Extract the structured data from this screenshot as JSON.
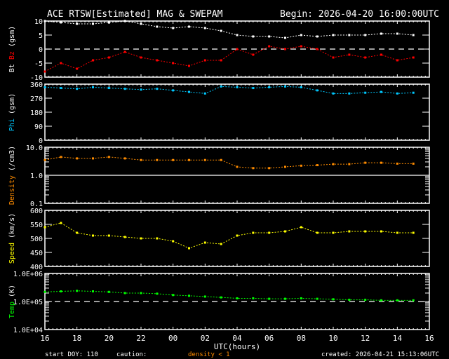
{
  "header": {
    "title": "ACE RTSW[Estimated] MAG & SWEPAM",
    "begin": "Begin: 2026-04-20 16:00:00UTC"
  },
  "footer": {
    "start_doy": "start DOY: 110",
    "caution_label": "caution:",
    "caution_value": "density < 1",
    "caution_color": "#ff8c00",
    "created": "created: 2026-04-21 15:13:06UTC"
  },
  "chart_data": {
    "type": "scatter",
    "xlabel": "UTC(hours)",
    "x_tick_labels": [
      "16",
      "18",
      "20",
      "22",
      "00",
      "02",
      "04",
      "06",
      "08",
      "10",
      "12",
      "14",
      "16"
    ],
    "x_range": [
      "2026-04-20 16:00",
      "2026-04-21 16:00"
    ],
    "times": [
      "16:00",
      "17:00",
      "18:00",
      "19:00",
      "20:00",
      "21:00",
      "22:00",
      "23:00",
      "00:00",
      "01:00",
      "02:00",
      "03:00",
      "04:00",
      "05:00",
      "06:00",
      "07:00",
      "08:00",
      "09:00",
      "10:00",
      "11:00",
      "12:00",
      "13:00",
      "14:00",
      "15:00"
    ],
    "grid": false,
    "panels": [
      {
        "ylabel": [
          {
            "text": "Bt",
            "color": "#ffffff"
          },
          {
            "text": "Bz",
            "color": "#ff0000"
          },
          {
            "text": "(gsm)",
            "color": "#ffffff"
          }
        ],
        "scale": "linear",
        "ylim": [
          -10,
          10
        ],
        "ticks": [
          -10,
          -5,
          0,
          5,
          10
        ],
        "tick_labels": [
          "-10",
          "-5",
          "0",
          "5",
          "10"
        ],
        "refline": {
          "value": 0,
          "style": "dashed"
        },
        "series": [
          {
            "name": "Bt",
            "color": "#ffffff",
            "y": [
              10,
              9.5,
              9,
              9,
              9.5,
              10,
              9,
              8,
              7.5,
              8,
              7.5,
              6.5,
              5,
              4.5,
              4.5,
              4,
              5,
              4.5,
              5,
              5,
              5,
              5.5,
              5.5,
              5
            ]
          },
          {
            "name": "Bz",
            "color": "#ff0000",
            "y": [
              -8,
              -5,
              -7,
              -4,
              -3,
              -1,
              -3,
              -4,
              -5,
              -6,
              -4,
              -4,
              0,
              -2,
              1,
              0,
              1,
              0,
              -3,
              -2,
              -3,
              -2,
              -4,
              -3
            ]
          }
        ]
      },
      {
        "ylabel": [
          {
            "text": "Phi",
            "color": "#00c8ff"
          },
          {
            "text": "(gsm)",
            "color": "#ffffff"
          }
        ],
        "scale": "linear",
        "ylim": [
          0,
          360
        ],
        "ticks": [
          0,
          90,
          180,
          270,
          360
        ],
        "tick_labels": [
          "0",
          "90",
          "180",
          "270",
          "360"
        ],
        "series": [
          {
            "name": "Phi",
            "color": "#00c8ff",
            "y": [
              340,
              335,
              330,
              340,
              335,
              330,
              325,
              330,
              320,
              310,
              300,
              345,
              340,
              335,
              340,
              345,
              340,
              320,
              300,
              300,
              305,
              310,
              300,
              305
            ]
          }
        ]
      },
      {
        "ylabel": [
          {
            "text": "Density",
            "color": "#ff8c00"
          },
          {
            "text": "(/cm3)",
            "color": "#ffffff"
          }
        ],
        "scale": "log",
        "ylim": [
          0.1,
          10
        ],
        "ticks": [
          0.1,
          1,
          10
        ],
        "tick_labels": [
          "0.1",
          "1.0",
          "10.0"
        ],
        "refline": {
          "value": 1,
          "style": "solid"
        },
        "series": [
          {
            "name": "Density",
            "color": "#ff8c00",
            "y": [
              3.5,
              4.5,
              4,
              4,
              4.5,
              4,
              3.5,
              3.5,
              3.5,
              3.5,
              3.5,
              3.5,
              2,
              1.8,
              1.8,
              2,
              2.2,
              2.3,
              2.5,
              2.5,
              2.8,
              2.8,
              2.6,
              2.6
            ]
          }
        ]
      },
      {
        "ylabel": [
          {
            "text": "Speed",
            "color": "#ffff00"
          },
          {
            "text": "(km/s)",
            "color": "#ffffff"
          }
        ],
        "scale": "linear",
        "ylim": [
          400,
          600
        ],
        "ticks": [
          400,
          450,
          500,
          550,
          600
        ],
        "tick_labels": [
          "400",
          "450",
          "500",
          "550",
          "600"
        ],
        "series": [
          {
            "name": "Speed",
            "color": "#ffff00",
            "y": [
              540,
              555,
              520,
              510,
              510,
              505,
              500,
              500,
              490,
              465,
              485,
              480,
              510,
              520,
              520,
              525,
              540,
              520,
              520,
              525,
              525,
              525,
              520,
              520
            ]
          }
        ]
      },
      {
        "ylabel": [
          {
            "text": "Temp",
            "color": "#00ff00"
          },
          {
            "text": "(K)",
            "color": "#ffffff"
          }
        ],
        "scale": "log",
        "ylim": [
          10000,
          1000000
        ],
        "ticks": [
          10000,
          100000,
          1000000
        ],
        "tick_labels": [
          "1.0E+04",
          "1.0E+05",
          "1.0E+06"
        ],
        "refline": {
          "value": 100000,
          "style": "dashed"
        },
        "series": [
          {
            "name": "Temp",
            "color": "#00ff00",
            "y": [
              220000,
              230000,
              240000,
              230000,
              220000,
              200000,
              200000,
              190000,
              170000,
              160000,
              150000,
              140000,
              130000,
              130000,
              125000,
              125000,
              130000,
              125000,
              120000,
              115000,
              115000,
              110000,
              110000,
              110000
            ]
          }
        ]
      }
    ]
  }
}
